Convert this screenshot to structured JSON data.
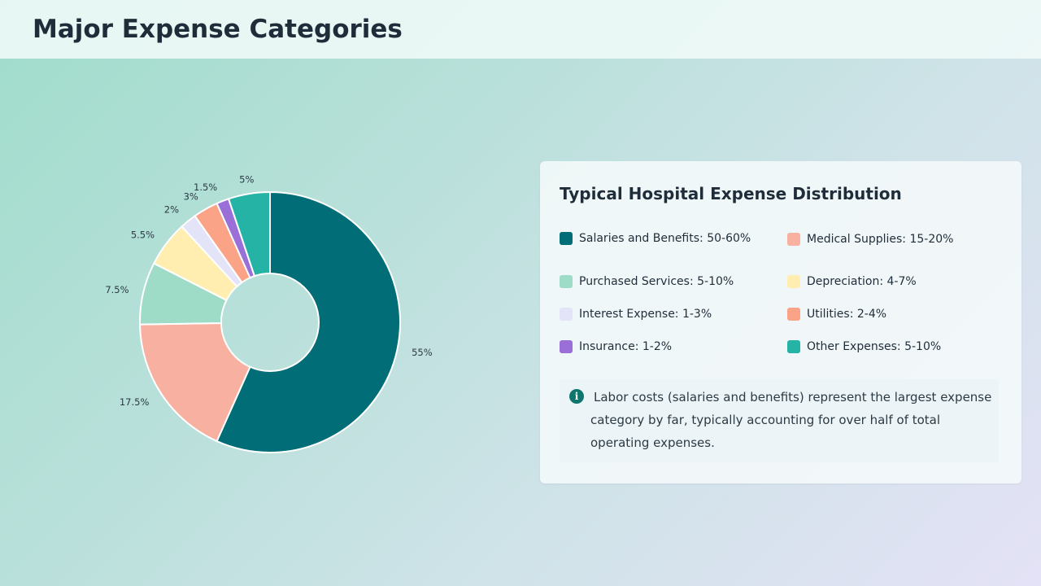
{
  "header": {
    "title": "Major Expense Categories"
  },
  "panel": {
    "title": "Typical Hospital Expense Distribution",
    "legend": [
      {
        "label": "Salaries and Benefits: 50-60%",
        "color": "#006d77"
      },
      {
        "label": "Medical Supplies: 15-20%",
        "color": "#f8b1a0"
      },
      {
        "label": "Purchased Services: 5-10%",
        "color": "#9fdcc8"
      },
      {
        "label": "Depreciation: 4-7%",
        "color": "#ffeeb0"
      },
      {
        "label": "Interest Expense: 1-3%",
        "color": "#e3e4f8"
      },
      {
        "label": "Utilities: 2-4%",
        "color": "#fba387"
      },
      {
        "label": "Insurance: 1-2%",
        "color": "#9a6fd8"
      },
      {
        "label": "Other Expenses: 5-10%",
        "color": "#25b3a5"
      }
    ],
    "note": {
      "icon": "info-icon",
      "text": "Labor costs (salaries and benefits) represent the largest expense category by far, typically accounting for over half of total operating expenses."
    }
  },
  "chart_data": {
    "type": "pie",
    "donut": true,
    "categories": [
      "Salaries and Benefits",
      "Medical Supplies",
      "Purchased Services",
      "Depreciation",
      "Interest Expense",
      "Utilities",
      "Insurance",
      "Other Expenses"
    ],
    "values": [
      55,
      17.5,
      7.5,
      5.5,
      2,
      3,
      1.5,
      5
    ],
    "labels": [
      "55%",
      "17.5%",
      "7.5%",
      "5.5%",
      "2%",
      "3%",
      "1.5%",
      "5%"
    ],
    "colors": [
      "#006d77",
      "#f8b1a0",
      "#9fdcc8",
      "#ffeeb0",
      "#e3e4f8",
      "#fba387",
      "#9a6fd8",
      "#25b3a5"
    ]
  }
}
